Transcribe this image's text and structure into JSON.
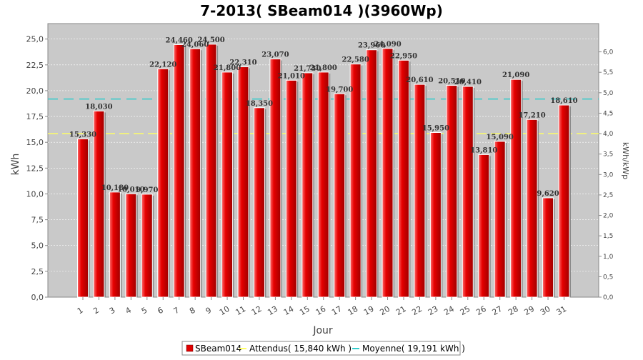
{
  "chart_data": {
    "type": "bar",
    "title": "7-2013( SBeam014 )(3960Wp)",
    "xlabel": "Jour",
    "ylabel": "kWh",
    "ylabel_right": "kWh/kWp",
    "ylim": [
      0,
      26.5
    ],
    "y_ticks": [
      "0,0",
      "2,5",
      "5,0",
      "7,5",
      "10,0",
      "12,5",
      "15,0",
      "17,5",
      "20,0",
      "22,5",
      "25,0"
    ],
    "y_right_ticks": [
      "0,0",
      "0,5",
      "1,0",
      "1,5",
      "2,0",
      "2,5",
      "3,0",
      "3,5",
      "4,0",
      "4,5",
      "5,0",
      "5,5",
      "6,0"
    ],
    "categories": [
      "1",
      "2",
      "3",
      "4",
      "5",
      "6",
      "7",
      "8",
      "9",
      "10",
      "11",
      "12",
      "13",
      "14",
      "15",
      "16",
      "17",
      "18",
      "19",
      "20",
      "21",
      "22",
      "23",
      "24",
      "25",
      "26",
      "27",
      "28",
      "29",
      "30",
      "31"
    ],
    "series": [
      {
        "name": "SBeam014",
        "values": [
          15.33,
          18.03,
          10.18,
          10.01,
          9.97,
          22.12,
          24.46,
          24.06,
          24.5,
          21.8,
          22.31,
          18.35,
          23.07,
          21.01,
          21.73,
          21.8,
          19.7,
          22.58,
          23.96,
          24.09,
          22.95,
          20.61,
          15.95,
          20.51,
          20.41,
          13.81,
          15.09,
          21.09,
          17.21,
          9.62,
          18.61
        ],
        "labels": [
          "15,330",
          "18,030",
          "10,180",
          "10,010",
          "9,970",
          "22,120",
          "24,460",
          "24,060",
          "24,500",
          "21,800",
          "22,310",
          "18,350",
          "23,070",
          "21,010",
          "21,730",
          "21,800",
          "19,700",
          "22,580",
          "23,960",
          "24,090",
          "22,950",
          "20,610",
          "15,950",
          "20,510",
          "20,410",
          "13,810",
          "15,090",
          "21,090",
          "17,210",
          "9,620",
          "18,610"
        ],
        "color": "#e00000"
      }
    ],
    "reference_lines": [
      {
        "name": "Attendus",
        "value": 15.84,
        "legend": "Attendus( 15,840 kWh )",
        "color": "#ffff66"
      },
      {
        "name": "Moyenne",
        "value": 19.191,
        "legend": "Moyenne( 19,191 kWh )",
        "color": "#33cccc"
      }
    ],
    "legend_position": "bottom",
    "grid": true
  }
}
